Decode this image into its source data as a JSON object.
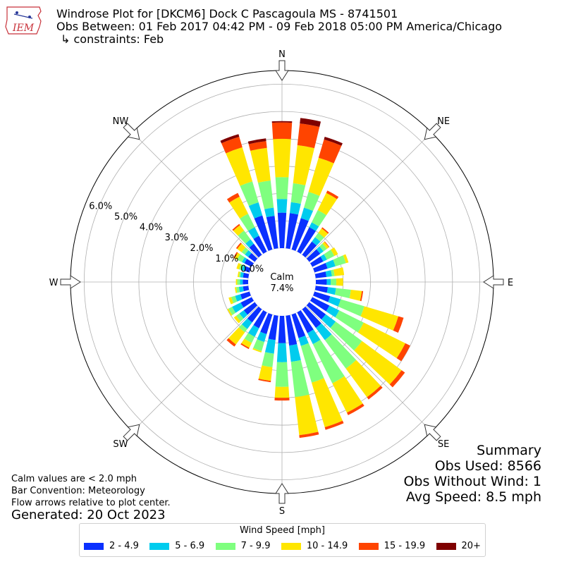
{
  "header": {
    "line1": "Windrose Plot for [DKCM6] Dock C  Pascagoula  MS - 8741501",
    "line2": "Obs Between: 01 Feb 2017 04:42 PM - 09 Feb 2018 05:00 PM America/Chicago",
    "line3": "↳ constraints: Feb",
    "logo_text": "IEM"
  },
  "notes": {
    "calm": "Calm values are < 2.0 mph",
    "bar": "Bar Convention: Meteorology",
    "flow": "Flow arrows relative to plot center.",
    "generated": "Generated: 20 Oct 2023"
  },
  "summary": {
    "title": "Summary",
    "obs_used": "Obs Used: 8566",
    "obs_without_wind": "Obs Without Wind: 1",
    "avg_speed": "Avg Speed: 8.5 mph"
  },
  "chart_data": {
    "type": "windrose",
    "calm_label": "Calm",
    "calm_value": "7.4%",
    "radial_ticks": [
      "0.0%",
      "1.0%",
      "2.0%",
      "3.0%",
      "4.0%",
      "5.0%",
      "6.0%"
    ],
    "rmax": 6.5,
    "directions": [
      "N",
      "NE",
      "E",
      "SE",
      "S",
      "SW",
      "W",
      "NW"
    ],
    "legend_title": "Wind Speed [mph]",
    "speed_bins": [
      "2 - 4.9",
      "5 - 6.9",
      "7 - 9.9",
      "10 - 14.9",
      "15 - 19.9",
      "20+"
    ],
    "colors": [
      "#0a30ff",
      "#00ccee",
      "#7fff7f",
      "#ffe600",
      "#ff4400",
      "#7f0000"
    ],
    "sector_degrees": [
      0,
      10,
      20,
      30,
      40,
      50,
      60,
      70,
      80,
      90,
      100,
      110,
      120,
      130,
      140,
      150,
      160,
      170,
      180,
      190,
      200,
      210,
      220,
      230,
      240,
      250,
      260,
      270,
      280,
      290,
      300,
      310,
      320,
      330,
      340,
      350
    ],
    "cumulative_percent": [
      [
        1.3,
        1.8,
        2.6,
        4.0,
        4.6,
        4.65
      ],
      [
        1.3,
        1.7,
        2.4,
        3.8,
        4.6,
        4.8
      ],
      [
        1.2,
        1.6,
        2.2,
        3.5,
        4.2,
        4.3
      ],
      [
        1.0,
        1.2,
        1.7,
        2.4,
        2.5,
        2.5
      ],
      [
        0.6,
        0.8,
        1.0,
        1.2,
        1.25,
        1.25
      ],
      [
        0.5,
        0.65,
        0.8,
        0.9,
        0.92,
        0.92
      ],
      [
        0.45,
        0.6,
        0.9,
        1.05,
        1.05,
        1.05
      ],
      [
        0.5,
        0.8,
        1.2,
        1.3,
        1.3,
        1.3
      ],
      [
        0.4,
        0.6,
        0.7,
        1.05,
        1.05,
        1.05
      ],
      [
        0.4,
        0.55,
        0.75,
        1.0,
        1.0,
        1.0
      ],
      [
        0.45,
        0.75,
        1.3,
        1.7,
        1.75,
        1.75
      ],
      [
        0.6,
        1.0,
        1.9,
        3.2,
        3.4,
        3.4
      ],
      [
        0.7,
        1.1,
        2.1,
        3.8,
        4.0,
        4.0
      ],
      [
        0.75,
        1.2,
        2.4,
        4.2,
        4.35,
        4.35
      ],
      [
        0.85,
        1.4,
        2.7,
        4.0,
        4.1,
        4.1
      ],
      [
        0.85,
        1.3,
        2.9,
        4.1,
        4.2,
        4.2
      ],
      [
        0.9,
        1.2,
        2.6,
        4.3,
        4.4,
        4.4
      ],
      [
        1.1,
        1.7,
        3.0,
        4.4,
        4.5,
        4.5
      ],
      [
        1.0,
        1.7,
        2.6,
        3.0,
        3.1,
        3.1
      ],
      [
        0.9,
        1.4,
        1.9,
        2.4,
        2.45,
        2.45
      ],
      [
        0.75,
        1.05,
        1.4,
        1.45,
        1.45,
        1.45
      ],
      [
        0.65,
        1.0,
        1.25,
        1.45,
        1.5,
        1.5
      ],
      [
        0.6,
        0.9,
        1.05,
        1.6,
        1.7,
        1.7
      ],
      [
        0.5,
        0.7,
        0.85,
        0.95,
        0.95,
        0.95
      ],
      [
        0.45,
        0.8,
        0.95,
        1.0,
        1.0,
        1.0
      ],
      [
        0.35,
        0.55,
        0.7,
        0.8,
        0.8,
        0.8
      ],
      [
        0.2,
        0.35,
        0.45,
        0.5,
        0.5,
        0.5
      ],
      [
        0.2,
        0.3,
        0.4,
        0.45,
        0.45,
        0.45
      ],
      [
        0.2,
        0.3,
        0.35,
        0.4,
        0.4,
        0.4
      ],
      [
        0.2,
        0.3,
        0.4,
        0.5,
        0.5,
        0.5
      ],
      [
        0.3,
        0.4,
        0.6,
        0.7,
        0.75,
        0.75
      ],
      [
        0.3,
        0.45,
        0.6,
        0.8,
        0.85,
        0.85
      ],
      [
        0.5,
        0.7,
        1.1,
        1.35,
        1.4,
        1.4
      ],
      [
        0.65,
        1.0,
        1.55,
        2.25,
        2.4,
        2.4
      ],
      [
        1.3,
        1.8,
        2.6,
        3.9,
        4.3,
        4.4
      ],
      [
        1.2,
        1.5,
        2.5,
        3.7,
        3.95,
        4.05
      ]
    ]
  }
}
